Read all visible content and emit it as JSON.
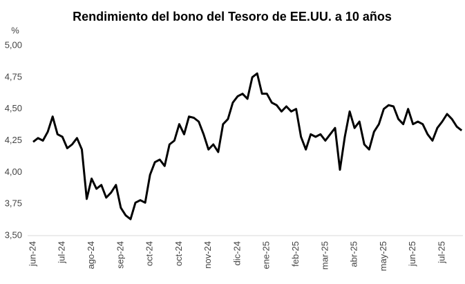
{
  "chart_data": {
    "type": "line",
    "title": "Rendimiento del bono del Tesoro de EE.UU. a 10 años",
    "y_label": "%",
    "categories": [
      "jun-24",
      null,
      null,
      null,
      null,
      null,
      "jul-24",
      null,
      null,
      null,
      null,
      null,
      "ago-24",
      null,
      null,
      null,
      null,
      null,
      "sep-24",
      null,
      null,
      null,
      null,
      null,
      "oct-24",
      null,
      null,
      null,
      null,
      null,
      "oct-24",
      null,
      null,
      null,
      null,
      null,
      "nov-24",
      null,
      null,
      null,
      null,
      null,
      "dic-24",
      null,
      null,
      null,
      null,
      null,
      "ene-25",
      null,
      null,
      null,
      null,
      null,
      "feb-25",
      null,
      null,
      null,
      null,
      null,
      "mar-25",
      null,
      null,
      null,
      null,
      null,
      "abr-25",
      null,
      null,
      null,
      null,
      null,
      "may-25",
      null,
      null,
      null,
      null,
      null,
      "jun-25",
      null,
      null,
      null,
      null,
      null,
      "jul-25",
      null,
      null,
      null,
      null
    ],
    "series": [
      {
        "name": "Rendimiento",
        "color": "#000000",
        "values": [
          4.24,
          4.27,
          4.25,
          4.32,
          4.44,
          4.3,
          4.28,
          4.19,
          4.22,
          4.27,
          4.18,
          3.79,
          3.95,
          3.87,
          3.9,
          3.8,
          3.84,
          3.9,
          3.72,
          3.66,
          3.63,
          3.76,
          3.78,
          3.76,
          3.98,
          4.08,
          4.1,
          4.05,
          4.22,
          4.25,
          4.38,
          4.3,
          4.44,
          4.43,
          4.4,
          4.3,
          4.18,
          4.22,
          4.16,
          4.38,
          4.42,
          4.55,
          4.6,
          4.62,
          4.58,
          4.75,
          4.78,
          4.62,
          4.62,
          4.55,
          4.53,
          4.48,
          4.52,
          4.48,
          4.5,
          4.28,
          4.18,
          4.3,
          4.28,
          4.3,
          4.25,
          4.3,
          4.35,
          4.02,
          4.28,
          4.48,
          4.35,
          4.4,
          4.22,
          4.18,
          4.32,
          4.38,
          4.5,
          4.53,
          4.52,
          4.42,
          4.38,
          4.5,
          4.38,
          4.4,
          4.38,
          4.3,
          4.25,
          4.35,
          4.4,
          4.46,
          4.42,
          4.36,
          4.33
        ]
      }
    ],
    "ylim": [
      3.5,
      5.0
    ],
    "yticks": [
      {
        "value": 3.5,
        "label": "3,50"
      },
      {
        "value": 3.75,
        "label": "3,75"
      },
      {
        "value": 4.0,
        "label": "4,00"
      },
      {
        "value": 4.25,
        "label": "4,25"
      },
      {
        "value": 4.5,
        "label": "4,50"
      },
      {
        "value": 4.75,
        "label": "4,75"
      },
      {
        "value": 5.0,
        "label": "5,00"
      }
    ],
    "grid": false
  }
}
